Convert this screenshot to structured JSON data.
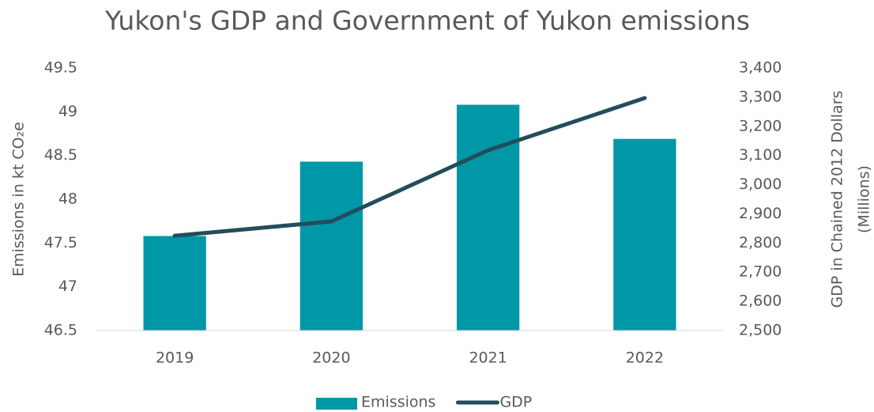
{
  "chart_data": {
    "type": "bar",
    "title": "Yukon's GDP and Government of Yukon emissions",
    "y_label": "Emissions in kt CO₂e",
    "y2_label": [
      "GDP in Chained 2012 Dollars",
      "(Millions)"
    ],
    "categories": [
      "2019",
      "2020",
      "2021",
      "2022"
    ],
    "series": [
      {
        "name": "Emissions",
        "type": "bar",
        "color": "#0097a7",
        "values": [
          47.58,
          48.43,
          49.08,
          48.69
        ]
      },
      {
        "name": "GDP",
        "type": "line",
        "axis": "y2",
        "color": "#234d5b",
        "values": [
          2825,
          2874,
          3118,
          3297
        ]
      }
    ],
    "ylim": [
      46.5,
      49.5
    ],
    "yticks": [
      46.5,
      47,
      47.5,
      48,
      48.5,
      49,
      49.5
    ],
    "y2lim": [
      2500,
      3400
    ],
    "y2ticks": [
      {
        "value": 2500,
        "label": "2,500"
      },
      {
        "value": 2600,
        "label": "2,600"
      },
      {
        "value": 2700,
        "label": "2,700"
      },
      {
        "value": 2800,
        "label": "2,800"
      },
      {
        "value": 2900,
        "label": "2,900"
      },
      {
        "value": 3000,
        "label": "3,000"
      },
      {
        "value": 3100,
        "label": "3,100"
      },
      {
        "value": 3200,
        "label": "3,200"
      },
      {
        "value": 3300,
        "label": "3,300"
      },
      {
        "value": 3400,
        "label": "3,400"
      }
    ],
    "grid": false,
    "legend": "bottom"
  }
}
